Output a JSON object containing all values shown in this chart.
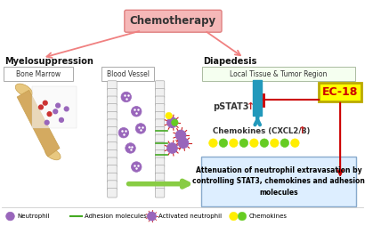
{
  "bg_color": "#ffffff",
  "title_text": "Chemotherapy",
  "title_box_color": "#f5b8b8",
  "title_box_edge": "#e08080",
  "myelosuppression_label": "Myelosuppression",
  "diapedesis_label": "Diapedesis",
  "bone_marrow_label": "Bone Marrow",
  "blood_vessel_label": "Blood Vessel",
  "local_tissue_label": "Local Tissue & Tumor Region",
  "pstat3_text": "pSTAT3",
  "chemokines_text": "Chemokines (CXCL2/8)",
  "ec18_text": "EC-18",
  "attenuation_text": "Attenuation of neutrophil extravasation by\ncontrolling STAT3, chemokines and adhesion\nmolecules",
  "legend_neutrophil": "Neutrophil",
  "legend_adhesion": "Adhesion molecules",
  "legend_activated": "Activated neutrophil",
  "legend_chemokines": "Chemokines",
  "arrow_color_pink": "#f08080",
  "arrow_color_red": "#cc0000",
  "arrow_color_teal": "#2299bb",
  "ec18_bg": "#ffff00",
  "attenuation_box_border": "#88aacc",
  "attenuation_box_bg": "#ddeeff",
  "local_tissue_box_border": "#aabba0",
  "local_tissue_box_bg": "#f5fff0",
  "vessel_color": "#f0f0f0",
  "vessel_border": "#999999",
  "neutrophil_color": "#9966bb",
  "neutrophil_border": "#6633aa",
  "activated_color": "#cc2222",
  "chemokine_yellow": "#ffee00",
  "chemokine_green": "#66cc22",
  "adhesion_color": "#44aa22",
  "green_arrow_color": "#88cc44",
  "bone_color": "#e8c880",
  "bone_border": "#c8a050"
}
